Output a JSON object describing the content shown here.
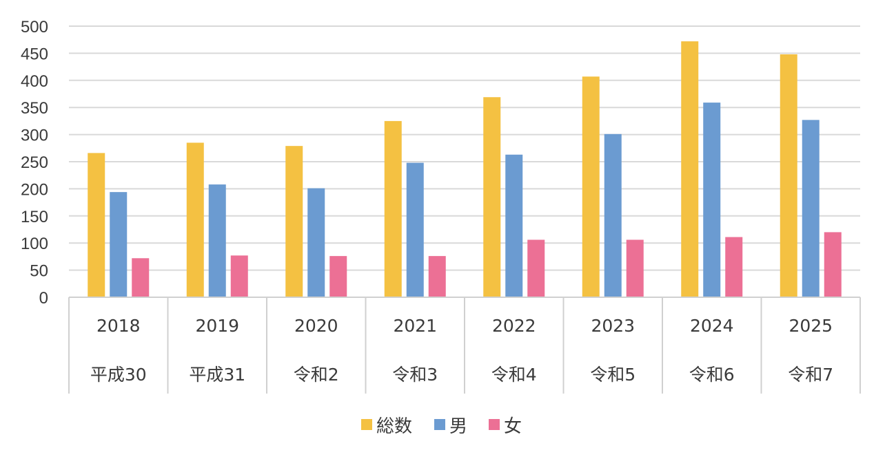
{
  "chart_data": {
    "type": "bar",
    "categories": [
      [
        "2018",
        "平成30"
      ],
      [
        "2019",
        "平成31"
      ],
      [
        "2020",
        "令和2"
      ],
      [
        "2021",
        "令和3"
      ],
      [
        "2022",
        "令和4"
      ],
      [
        "2023",
        "令和5"
      ],
      [
        "2024",
        "令和6"
      ],
      [
        "2025",
        "令和7"
      ]
    ],
    "series": [
      {
        "name": "総数",
        "color": "#f4c142",
        "values": [
          266,
          285,
          279,
          325,
          369,
          407,
          472,
          448
        ]
      },
      {
        "name": "男",
        "color": "#6b9bd1",
        "values": [
          194,
          208,
          201,
          248,
          263,
          301,
          359,
          327
        ]
      },
      {
        "name": "女",
        "color": "#ec7095",
        "values": [
          72,
          77,
          76,
          76,
          106,
          106,
          111,
          120
        ]
      }
    ],
    "y_ticks": [
      0,
      50,
      100,
      150,
      200,
      250,
      300,
      350,
      400,
      450,
      500
    ],
    "ylim": [
      0,
      500
    ],
    "grid": true,
    "legend_position": "bottom"
  }
}
